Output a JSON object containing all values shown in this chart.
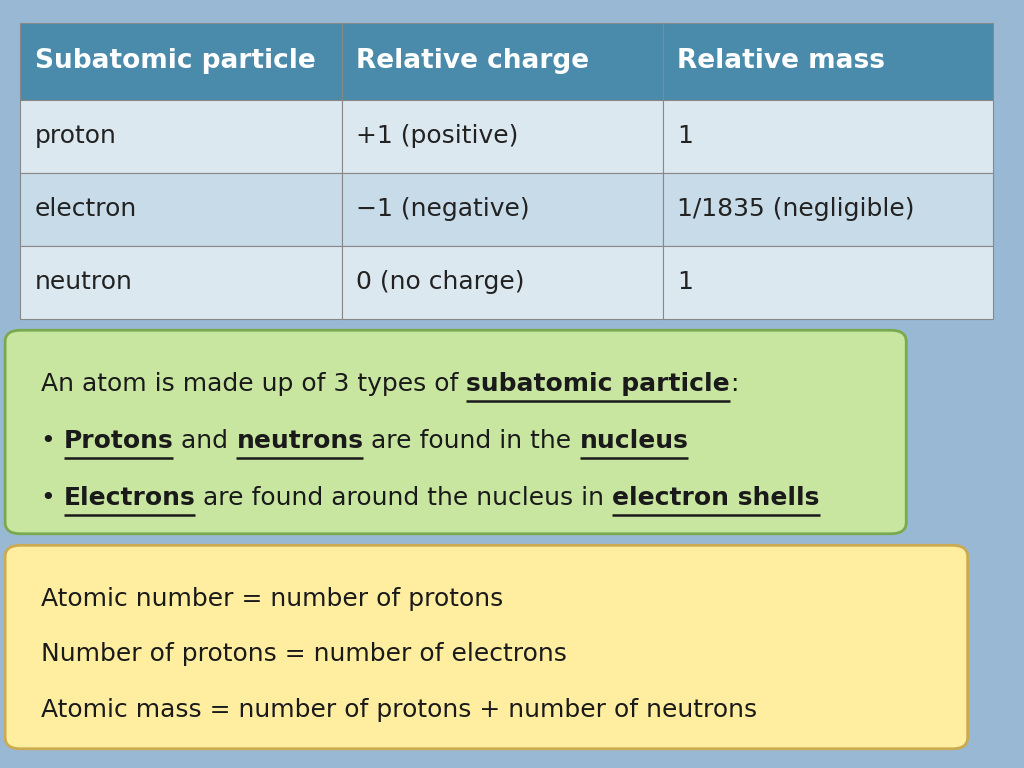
{
  "background_color": "#99b8d4",
  "table": {
    "headers": [
      "Subatomic particle",
      "Relative charge",
      "Relative mass"
    ],
    "rows": [
      [
        "proton",
        "+1 (positive)",
        "1"
      ],
      [
        "electron",
        "−1 (negative)",
        "1/1835 (negligible)"
      ],
      [
        "neutron",
        "0 (no charge)",
        "1"
      ]
    ],
    "header_bg": "#4a8aab",
    "header_text_color": "#ffffff",
    "row_bg_odd": "#dce8f0",
    "row_bg_even": "#c8dbe8",
    "border_color": "#888888",
    "font_size": 18,
    "header_font_size": 19
  },
  "green_box": {
    "bg_color": "#c8e6a0",
    "border_color": "#7aaa50",
    "font_size": 18,
    "lines": [
      [
        [
          "An atom is made up of 3 types of ",
          false,
          false
        ],
        [
          "subatomic particle",
          true,
          true
        ],
        [
          ":",
          false,
          false
        ]
      ],
      [
        [
          "• ",
          false,
          false
        ],
        [
          "Protons",
          true,
          true
        ],
        [
          " and ",
          false,
          false
        ],
        [
          "neutrons",
          true,
          true
        ],
        [
          " are found in the ",
          false,
          false
        ],
        [
          "nucleus",
          true,
          true
        ]
      ],
      [
        [
          "• ",
          false,
          false
        ],
        [
          "Electrons",
          true,
          true
        ],
        [
          " are found around the nucleus in ",
          false,
          false
        ],
        [
          "electron shells",
          true,
          true
        ]
      ]
    ]
  },
  "yellow_box": {
    "bg_color": "#ffeea0",
    "border_color": "#ccaa50",
    "font_size": 18,
    "lines": [
      "Atomic number = number of protons",
      "Number of protons = number of electrons",
      "Atomic mass = number of protons + number of neutrons"
    ]
  }
}
